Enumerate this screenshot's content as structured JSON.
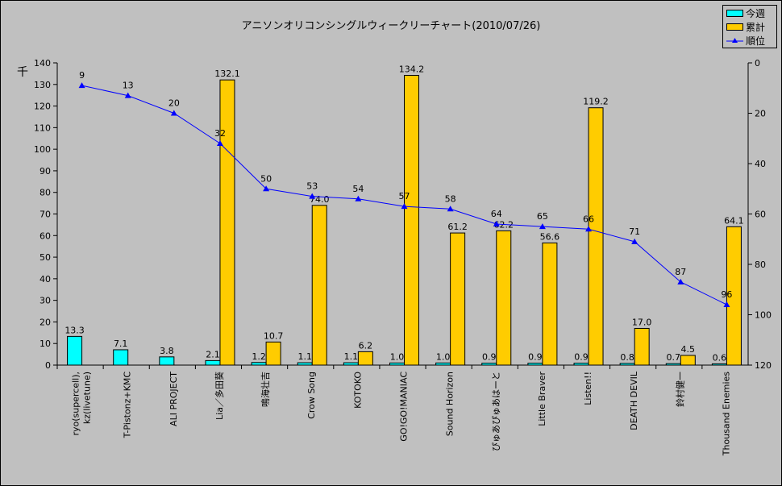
{
  "chart_data": {
    "type": "bar+line",
    "title": "アニソンオリコンシングルウィークリーチャート(2010/07/26)",
    "y_left_unit": "千",
    "categories": [
      "ryo(supercell), kz(livetune)",
      "T-Pistonz+KMC",
      "ALI PROJECT",
      "Lia／多田葵",
      "鳴海壮吉",
      "Crow Song",
      "KOTOKO",
      "GO!GO!MANIAC",
      "Sound Horizon",
      "ぴゅあぴゅあはーと",
      "Little Braver",
      "Listen!!",
      "DEATH DEVIL",
      "鈴村健一",
      "Thousand Enemies"
    ],
    "series": [
      {
        "name": "今週",
        "type": "bar",
        "axis": "left",
        "color": "#00ffff",
        "values": [
          13.3,
          7.1,
          3.8,
          2.1,
          1.2,
          1.1,
          1.1,
          1.0,
          1.0,
          0.9,
          0.9,
          0.9,
          0.8,
          0.7,
          0.6
        ],
        "labels": [
          "13.3",
          "7.1",
          "3.8",
          "2.1",
          "1.2",
          "1.1",
          "1.1",
          "1.0",
          "1.0",
          "0.9",
          "0.9",
          "0.9",
          "0.8",
          "0.7",
          "0.6"
        ]
      },
      {
        "name": "累計",
        "type": "bar",
        "axis": "left",
        "color": "#ffcc00",
        "values": [
          null,
          null,
          null,
          132.1,
          10.7,
          74.0,
          6.2,
          134.2,
          61.2,
          62.2,
          56.6,
          119.2,
          17.0,
          4.5,
          64.1
        ],
        "labels": [
          "",
          "",
          "",
          "132.1",
          "10.7",
          "74.0",
          "6.2",
          "134.2",
          "61.2",
          "62.2",
          "56.6",
          "119.2",
          "17.0",
          "4.5",
          "64.1"
        ]
      },
      {
        "name": "順位",
        "type": "line",
        "axis": "right",
        "color": "#0000ff",
        "marker": "triangle",
        "values": [
          9,
          13,
          20,
          32,
          50,
          53,
          54,
          57,
          58,
          64,
          65,
          66,
          71,
          87,
          96
        ],
        "labels": [
          "9",
          "13",
          "20",
          "32",
          "50",
          "53",
          "54",
          "57",
          "58",
          "64",
          "65",
          "66",
          "71",
          "87",
          "96"
        ]
      }
    ],
    "y_left": {
      "range": [
        0,
        140
      ],
      "ticks": [
        "0",
        "10",
        "20",
        "30",
        "40",
        "50",
        "60",
        "70",
        "80",
        "90",
        "100",
        "110",
        "120",
        "130",
        "140"
      ]
    },
    "y_right": {
      "range": [
        0,
        120
      ],
      "reversed": true,
      "ticks": [
        "0",
        "20",
        "40",
        "60",
        "80",
        "100",
        "120"
      ]
    },
    "grid": false,
    "legend": "top-right"
  }
}
